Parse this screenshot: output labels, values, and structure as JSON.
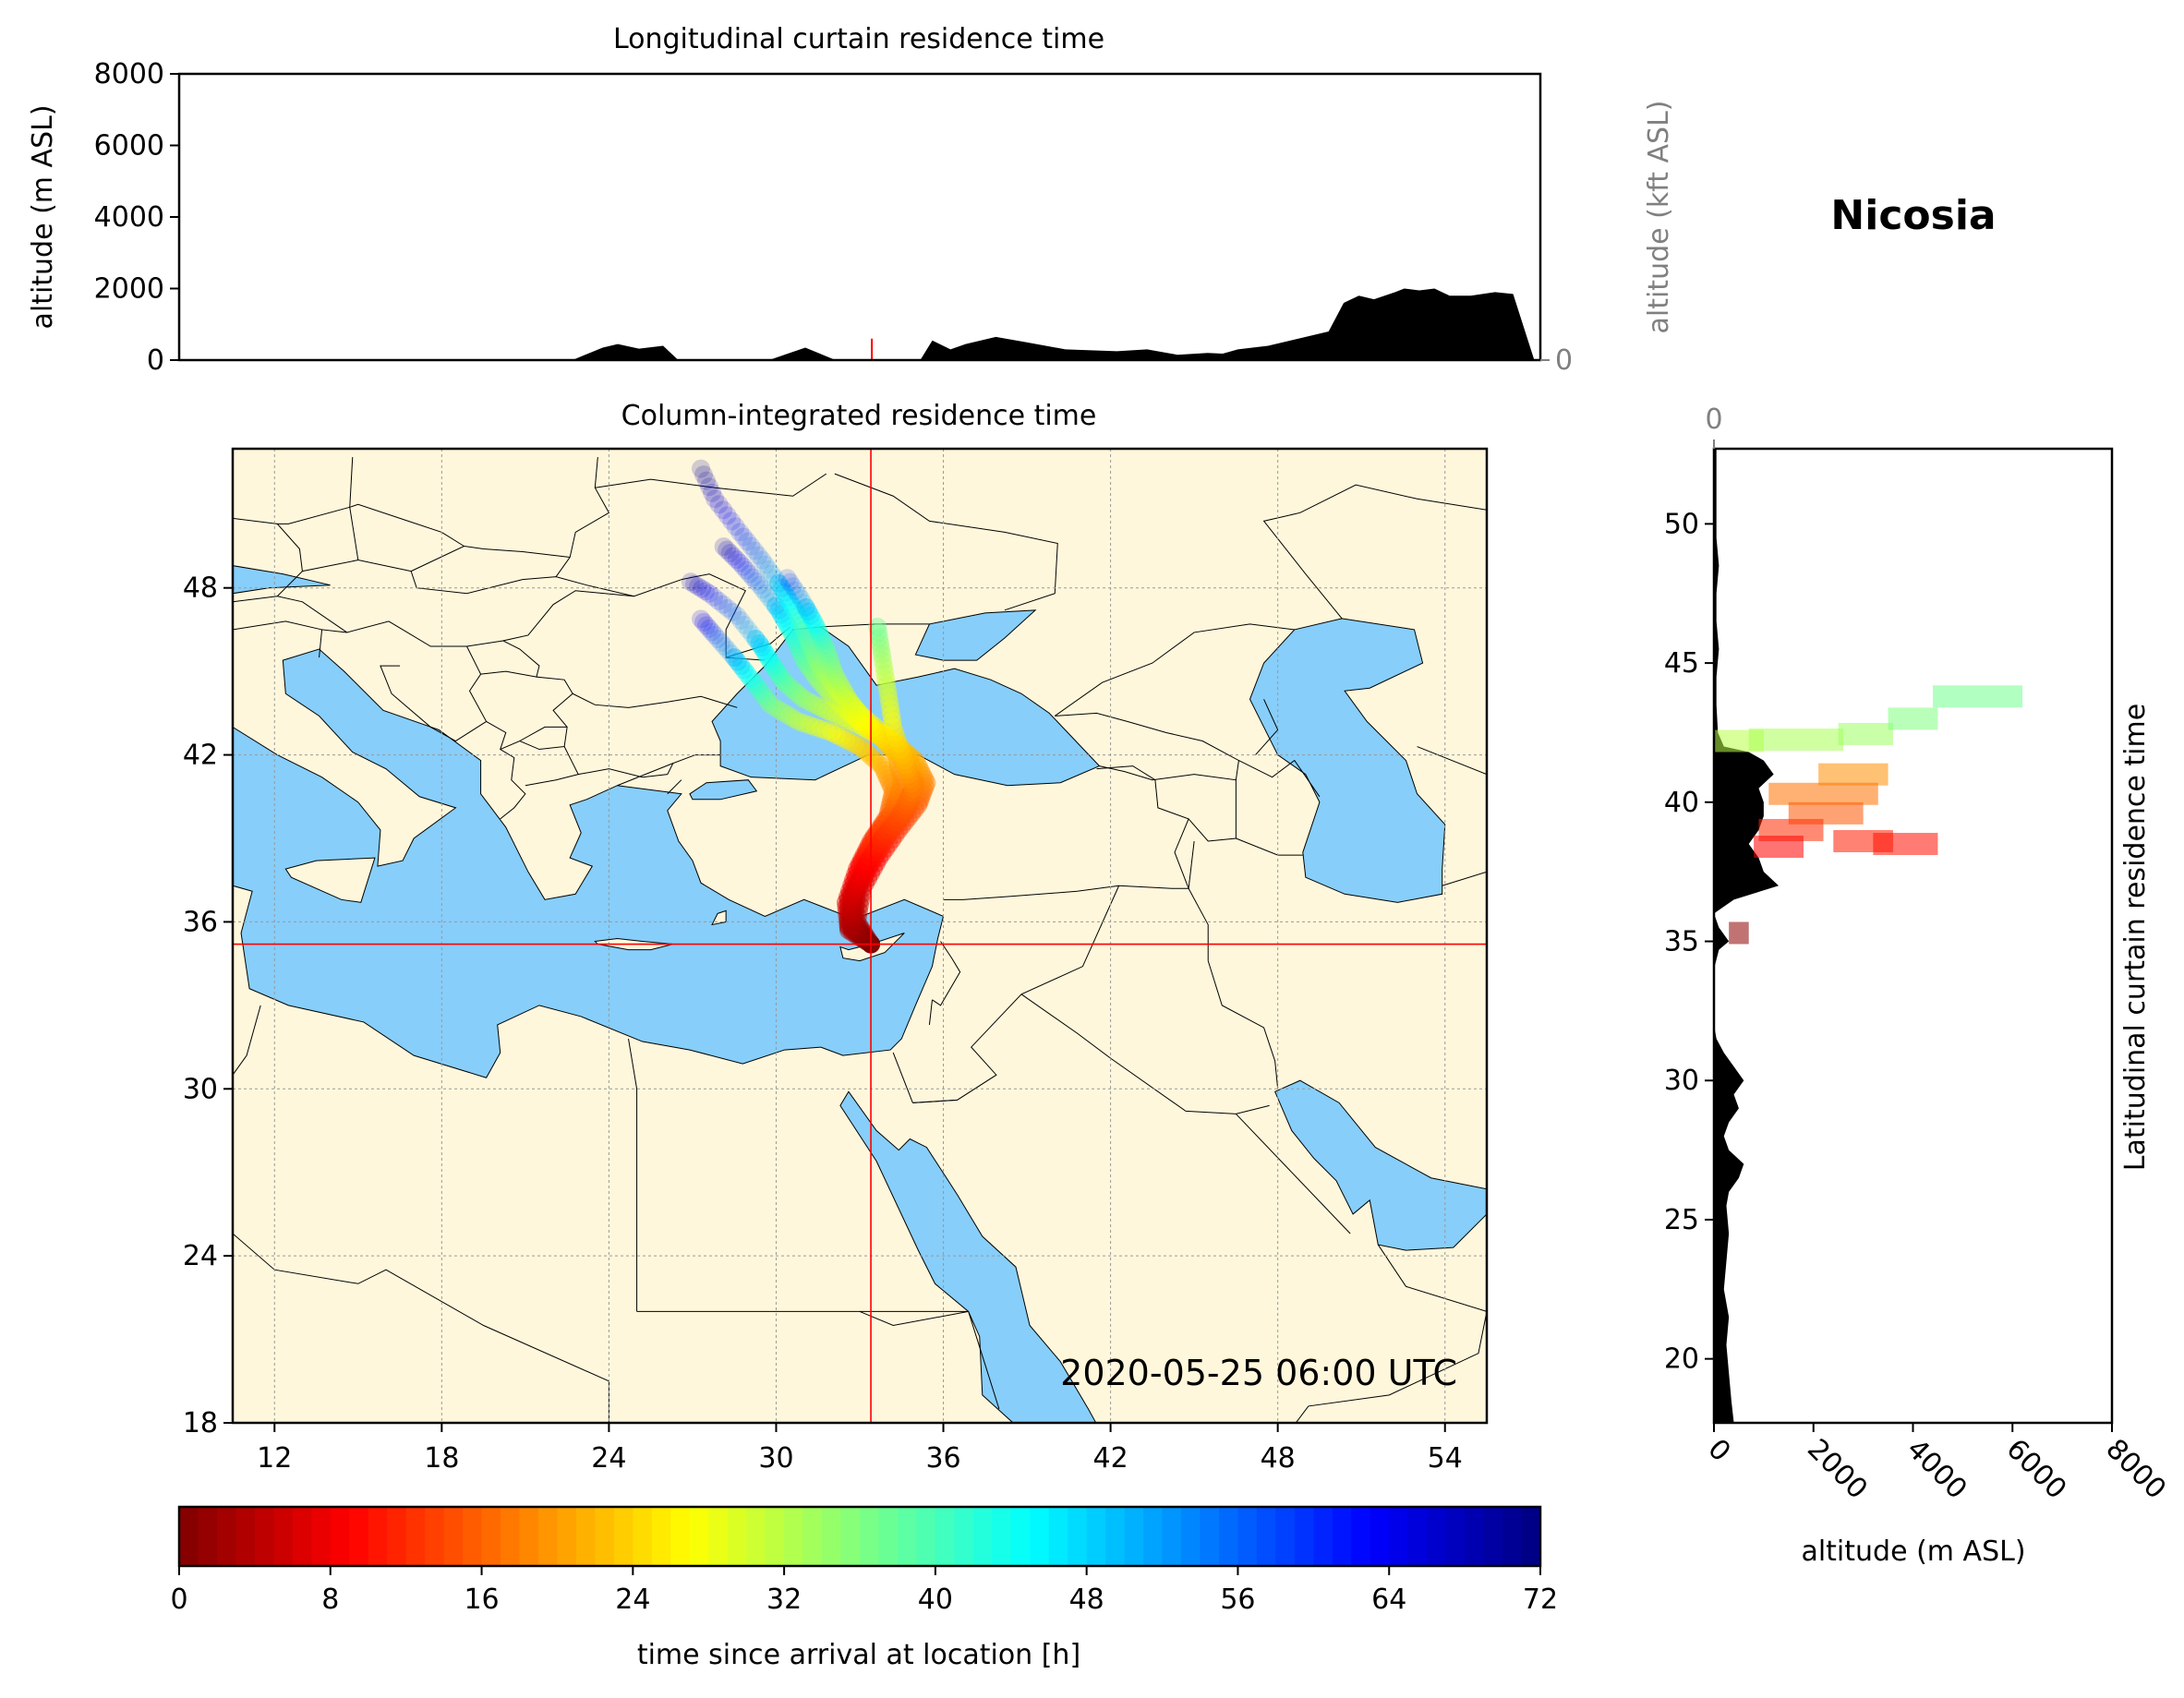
{
  "station": "Nicosia",
  "timestamp": "2020-05-25 06:00 UTC",
  "colors": {
    "sea": "#87cefa",
    "land": "#fff7dc",
    "terrain": "#000000",
    "marker": "#ff0000"
  },
  "chart_data": [
    {
      "type": "area",
      "title": "Longitudinal curtain residence time",
      "ylabel": "altitude (m ASL)",
      "y2label": "altitude (kft ASL)",
      "ylim": [
        0,
        8000
      ],
      "yticks": [
        "0",
        "2000",
        "4000",
        "6000",
        "8000"
      ],
      "y2ticks": [
        "0",
        "50",
        "100"
      ],
      "grid": true,
      "terrain": {
        "x": [
          10.5,
          23.5,
          24.5,
          25.0,
          25.7,
          26.5,
          27.0,
          30.0,
          31.2,
          32.2,
          32.8,
          33.5,
          34.0,
          35.0,
          35.4,
          36.0,
          36.5,
          37.5,
          38.5,
          39.8,
          41.5,
          42.5,
          43.5,
          44.5,
          45.0,
          45.5,
          46.5,
          47.5,
          48.5,
          49.0,
          49.5,
          50.0,
          50.7,
          51.0,
          51.5,
          52.0,
          52.5,
          53.2,
          54.0,
          54.6,
          55.3
        ],
        "y": [
          0,
          0,
          350,
          450,
          320,
          400,
          0,
          0,
          350,
          0,
          0,
          0,
          0,
          0,
          550,
          300,
          450,
          650,
          500,
          300,
          250,
          300,
          150,
          200,
          180,
          300,
          400,
          600,
          800,
          1600,
          1800,
          1700,
          1900,
          2000,
          1950,
          2000,
          1800,
          1800,
          1900,
          1850,
          0
        ]
      }
    },
    {
      "type": "scatter",
      "title": "Column-integrated residence time",
      "xlim": [
        10.5,
        55.5
      ],
      "ylim": [
        18,
        53
      ],
      "xticks": [
        "12",
        "18",
        "24",
        "30",
        "36",
        "42",
        "48",
        "54"
      ],
      "yticks": [
        "18",
        "24",
        "30",
        "36",
        "42",
        "48"
      ],
      "grid": true,
      "site": {
        "lon": 33.4,
        "lat": 35.2
      },
      "trajectories": [
        {
          "lon": [
            33.4,
            32.6,
            32.6,
            33.0,
            33.5,
            34.2,
            34.5,
            34.3,
            33.8,
            33.1,
            32.0,
            31.0,
            30.3,
            29.9,
            29.4,
            28.6,
            27.6,
            26.8
          ],
          "lat": [
            35.2,
            35.8,
            36.8,
            38.0,
            39.0,
            40.0,
            41.0,
            42.0,
            42.6,
            43.0,
            43.5,
            44.0,
            44.6,
            45.2,
            46.0,
            47.0,
            47.8,
            48.3
          ],
          "h": [
            0,
            3,
            6,
            9,
            12,
            15,
            18,
            21,
            24,
            27,
            30,
            34,
            38,
            42,
            48,
            55,
            62,
            70
          ]
        },
        {
          "lon": [
            33.4,
            32.7,
            32.8,
            33.3,
            33.9,
            34.6,
            35.0,
            34.8,
            34.0,
            33.0,
            32.2,
            31.5,
            31.0,
            30.6,
            30.1,
            29.4,
            28.7,
            28.0
          ],
          "lat": [
            35.2,
            35.9,
            37.0,
            38.2,
            39.2,
            40.2,
            41.0,
            41.9,
            42.6,
            43.2,
            43.9,
            44.7,
            45.4,
            46.3,
            47.2,
            48.1,
            48.9,
            49.6
          ],
          "h": [
            0,
            3,
            6,
            9,
            12,
            15,
            18,
            21,
            24,
            27,
            30,
            34,
            38,
            42,
            48,
            55,
            62,
            70
          ]
        },
        {
          "lon": [
            33.4,
            32.9,
            33.1,
            33.7,
            34.4,
            35.1,
            35.4,
            35.0,
            34.2,
            33.2,
            32.3,
            31.6,
            31.2,
            30.8,
            30.2,
            29.5,
            28.7,
            27.8,
            27.2
          ],
          "lat": [
            35.2,
            36.0,
            37.2,
            38.3,
            39.3,
            40.2,
            41.0,
            41.8,
            42.5,
            43.3,
            44.2,
            45.1,
            46.0,
            47.0,
            48.0,
            49.0,
            50.0,
            51.2,
            52.5
          ],
          "h": [
            0,
            3,
            6,
            9,
            12,
            15,
            18,
            21,
            24,
            27,
            30,
            34,
            38,
            42,
            48,
            55,
            60,
            66,
            72
          ]
        },
        {
          "lon": [
            33.4,
            32.8,
            32.9,
            33.4,
            34.0,
            34.7,
            35.0,
            34.6,
            33.9,
            33.2,
            32.6,
            32.1,
            31.8,
            31.4,
            30.9,
            30.3
          ],
          "lat": [
            35.2,
            36.0,
            37.1,
            38.1,
            39.1,
            40.0,
            40.9,
            41.8,
            42.5,
            43.2,
            44.0,
            44.9,
            45.8,
            46.7,
            47.6,
            48.5
          ],
          "h": [
            0,
            3,
            6,
            9,
            12,
            15,
            18,
            21,
            24,
            27,
            30,
            34,
            38,
            44,
            52,
            60
          ]
        },
        {
          "lon": [
            33.4,
            32.6,
            32.5,
            32.9,
            33.4,
            34.0,
            34.2,
            33.8,
            33.0,
            32.0,
            30.8,
            29.8,
            29.2,
            28.5,
            27.8,
            27.2
          ],
          "lat": [
            35.2,
            35.7,
            36.7,
            37.9,
            38.9,
            39.8,
            40.7,
            41.6,
            42.3,
            42.8,
            43.2,
            43.8,
            44.6,
            45.5,
            46.3,
            47.0
          ],
          "h": [
            0,
            3,
            6,
            9,
            12,
            15,
            18,
            21,
            24,
            27,
            31,
            36,
            42,
            50,
            58,
            66
          ]
        },
        {
          "lon": [
            33.4,
            32.7,
            32.7,
            33.2,
            33.8,
            34.5,
            34.9,
            34.6,
            34.2,
            34.0,
            33.8,
            33.6
          ],
          "lat": [
            35.2,
            35.8,
            36.9,
            38.0,
            39.0,
            39.9,
            40.8,
            41.8,
            43.0,
            44.3,
            45.6,
            46.8
          ],
          "h": [
            0,
            3,
            6,
            9,
            12,
            15,
            18,
            22,
            26,
            30,
            34,
            38
          ]
        }
      ]
    },
    {
      "type": "area",
      "title": "Latitudinal curtain residence time",
      "xlabel": "altitude (m ASL)",
      "xlim": [
        0,
        8000
      ],
      "xticks": [
        "0",
        "2000",
        "4000",
        "6000",
        "8000"
      ],
      "x2ticks": [
        "0",
        "50",
        "100"
      ],
      "ylim": [
        17.7,
        52.7
      ],
      "yticks": [
        "20",
        "25",
        "30",
        "35",
        "40",
        "45",
        "50"
      ],
      "grid": true,
      "terrain": {
        "lat": [
          17.7,
          18.5,
          19.5,
          20.5,
          21.5,
          22.5,
          23.5,
          24.5,
          25.5,
          26.0,
          26.5,
          27.0,
          27.5,
          28.0,
          28.5,
          29.0,
          29.5,
          30.0,
          30.5,
          31.0,
          31.5,
          32.0,
          33.0,
          34.0,
          34.7,
          35.0,
          35.5,
          36.0,
          36.5,
          37.0,
          37.5,
          38.0,
          38.5,
          39.0,
          39.5,
          40.0,
          40.5,
          41.0,
          41.5,
          41.8,
          42.0,
          42.5,
          43.5,
          44.5,
          45.5,
          46.5,
          47.5,
          48.5,
          49.5,
          50.5,
          51.5,
          52.7
        ],
        "alt": [
          400,
          350,
          300,
          250,
          300,
          200,
          250,
          300,
          250,
          300,
          500,
          600,
          300,
          200,
          300,
          500,
          400,
          600,
          400,
          200,
          50,
          0,
          0,
          0,
          100,
          300,
          100,
          0,
          400,
          1300,
          1000,
          900,
          700,
          900,
          1000,
          1000,
          900,
          1200,
          1000,
          700,
          200,
          80,
          50,
          50,
          100,
          50,
          50,
          100,
          50,
          50,
          50,
          50
        ]
      },
      "blocks": [
        {
          "lat": 42.2,
          "alt0": 0,
          "alt1": 1000,
          "h": 32
        },
        {
          "lat": 42.25,
          "alt0": 700,
          "alt1": 2600,
          "h": 33
        },
        {
          "lat": 42.45,
          "alt0": 2500,
          "alt1": 3600,
          "h": 34
        },
        {
          "lat": 43.0,
          "alt0": 3500,
          "alt1": 4500,
          "h": 36
        },
        {
          "lat": 43.8,
          "alt0": 4400,
          "alt1": 6200,
          "h": 37
        },
        {
          "lat": 41.0,
          "alt0": 2100,
          "alt1": 3500,
          "h": 19
        },
        {
          "lat": 40.3,
          "alt0": 1100,
          "alt1": 3300,
          "h": 17
        },
        {
          "lat": 39.6,
          "alt0": 1500,
          "alt1": 3000,
          "h": 15
        },
        {
          "lat": 39.0,
          "alt0": 900,
          "alt1": 2200,
          "h": 12
        },
        {
          "lat": 38.6,
          "alt0": 2400,
          "alt1": 3600,
          "h": 11
        },
        {
          "lat": 38.5,
          "alt0": 3200,
          "alt1": 4500,
          "h": 10
        },
        {
          "lat": 38.4,
          "alt0": 800,
          "alt1": 1800,
          "h": 9
        },
        {
          "lat": 35.3,
          "alt0": 300,
          "alt1": 700,
          "h": 1
        }
      ]
    },
    {
      "type": "heatmap",
      "xlabel": "time since arrival at location [h]",
      "xlim": [
        0,
        72
      ],
      "xticks": [
        "0",
        "8",
        "16",
        "24",
        "32",
        "40",
        "48",
        "56",
        "64",
        "72"
      ]
    }
  ]
}
